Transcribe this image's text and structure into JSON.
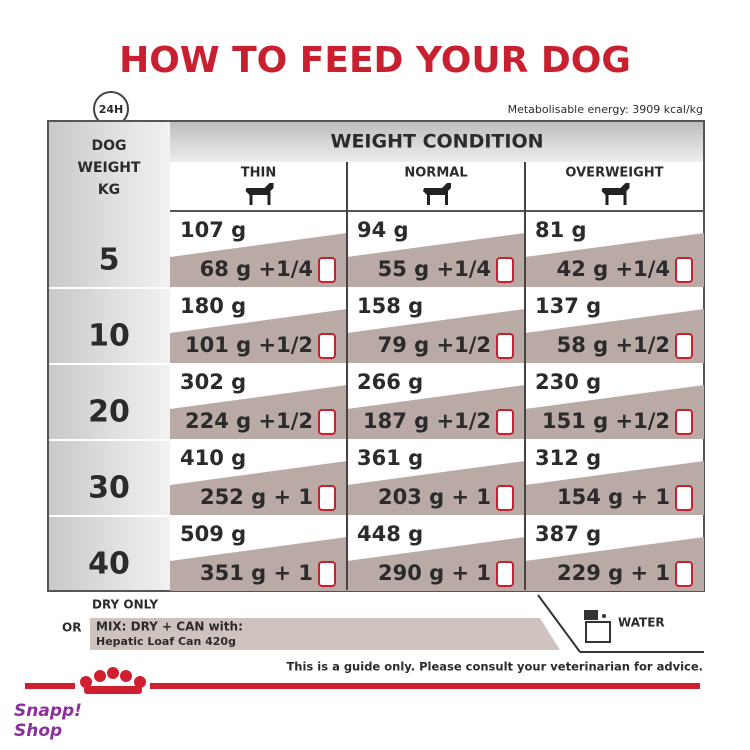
{
  "header": {
    "title": "HOW TO FEED YOUR DOG",
    "clock": "24H",
    "energy": "Metabolisable energy: 3909 kcal/kg"
  },
  "table": {
    "weight_header": [
      "DOG",
      "WEIGHT",
      "KG"
    ],
    "group_header": "WEIGHT CONDITION",
    "columns": [
      "THIN",
      "NORMAL",
      "OVERWEIGHT"
    ],
    "rows": [
      {
        "weight": "5",
        "cells": [
          {
            "dry": "107 g",
            "mix": "68 g +1/4"
          },
          {
            "dry": "94 g",
            "mix": "55 g +1/4"
          },
          {
            "dry": "81 g",
            "mix": "42 g +1/4"
          }
        ]
      },
      {
        "weight": "10",
        "cells": [
          {
            "dry": "180 g",
            "mix": "101 g +1/2"
          },
          {
            "dry": "158 g",
            "mix": "79 g +1/2"
          },
          {
            "dry": "137 g",
            "mix": "58 g +1/2"
          }
        ]
      },
      {
        "weight": "20",
        "cells": [
          {
            "dry": "302 g",
            "mix": "224 g +1/2"
          },
          {
            "dry": "266 g",
            "mix": "187 g +1/2"
          },
          {
            "dry": "230 g",
            "mix": "151 g +1/2"
          }
        ]
      },
      {
        "weight": "30",
        "cells": [
          {
            "dry": "410 g",
            "mix": "252 g + 1"
          },
          {
            "dry": "361 g",
            "mix": "203 g + 1"
          },
          {
            "dry": "312 g",
            "mix": "154 g + 1"
          }
        ]
      },
      {
        "weight": "40",
        "cells": [
          {
            "dry": "509 g",
            "mix": "351 g + 1"
          },
          {
            "dry": "448 g",
            "mix": "290 g + 1"
          },
          {
            "dry": "387 g",
            "mix": "229 g + 1"
          }
        ]
      }
    ]
  },
  "legend": {
    "dry_only": "DRY ONLY",
    "or": "OR",
    "mix": "MIX: DRY + CAN with:",
    "can": "Hepatic Loaf Can 420g",
    "water": "WATER"
  },
  "footer": {
    "note": "This is a guide only. Please consult your veterinarian for advice."
  },
  "watermark": [
    "Snapp!",
    "Shop"
  ]
}
